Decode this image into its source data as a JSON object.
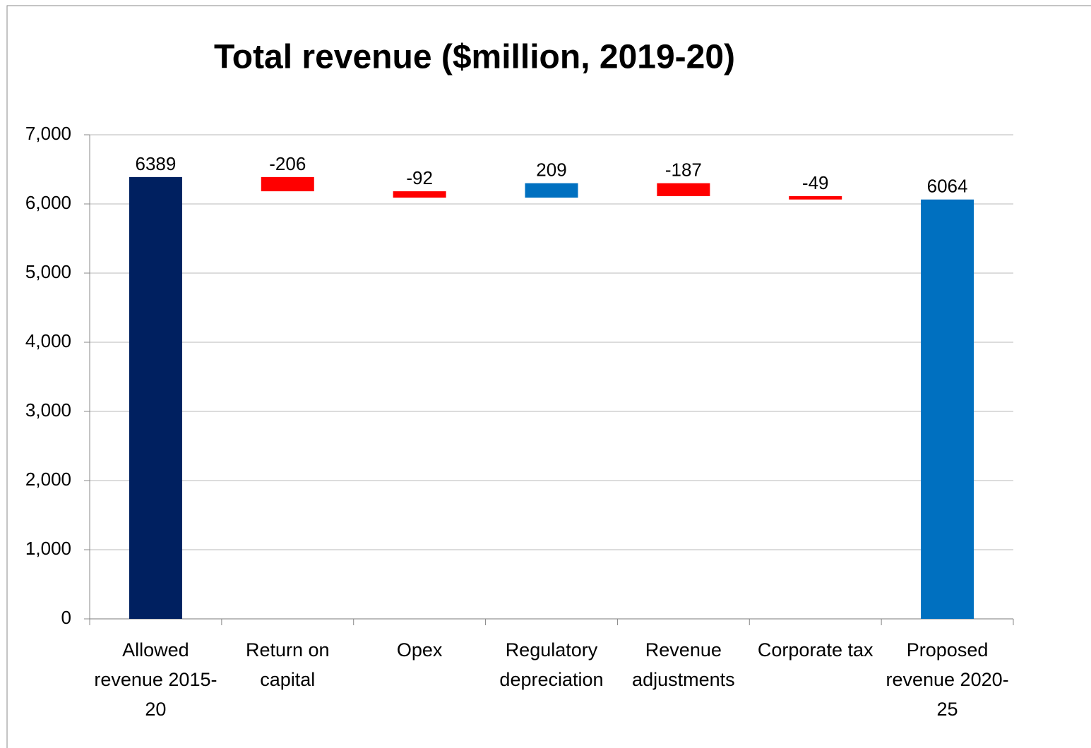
{
  "chart_data": {
    "type": "waterfall",
    "title": "Total revenue ($million, 2019-20)",
    "categories": [
      "Allowed revenue 2015-20",
      "Return on capital",
      "Opex",
      "Regulatory depreciation",
      "Revenue adjustments",
      "Corporate tax",
      "Proposed revenue 2020-25"
    ],
    "values": [
      6389,
      -206,
      -92,
      209,
      -187,
      -49,
      6064
    ],
    "measure": [
      "absolute",
      "relative",
      "relative",
      "relative",
      "relative",
      "relative",
      "absolute"
    ],
    "colors": [
      "#002060",
      "#ff0000",
      "#ff0000",
      "#0070c0",
      "#ff0000",
      "#ff0000",
      "#0070c0"
    ],
    "ylim": [
      0,
      7000
    ],
    "yticks": [
      0,
      {
        "value": 1000,
        "label": "1,000"
      },
      {
        "value": 2000,
        "label": "2,000"
      },
      {
        "value": 3000,
        "label": "3,000"
      },
      {
        "value": 4000,
        "label": "4,000"
      },
      {
        "value": 5000,
        "label": "5,000"
      },
      {
        "value": 6000,
        "label": "6,000"
      },
      {
        "value": 7000,
        "label": "7,000"
      }
    ],
    "grid": true
  }
}
